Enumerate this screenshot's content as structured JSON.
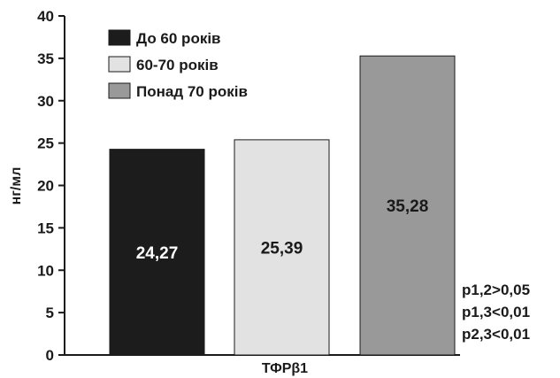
{
  "chart_data": {
    "type": "bar",
    "xlabel": "ТФРβ1",
    "ylabel": "нг/мл",
    "ylim": [
      0,
      40
    ],
    "yticks": [
      0,
      5,
      10,
      15,
      20,
      25,
      30,
      35,
      40
    ],
    "grid": false,
    "legend_position": "top-left",
    "series": [
      {
        "name": "До 60 років",
        "values": [
          24.27
        ],
        "value_label": "24,27",
        "color": "#1c1c1c",
        "label_color": "#ffffff"
      },
      {
        "name": "60-70 років",
        "values": [
          25.39
        ],
        "value_label": "25,39",
        "color": "#e2e2e2",
        "label_color": "#1a1a1a"
      },
      {
        "name": "Понад 70 років",
        "values": [
          35.28
        ],
        "value_label": "35,28",
        "color": "#999999",
        "label_color": "#1a1a1a"
      }
    ],
    "annotations": [
      "p1,2>0,05",
      "p1,3<0,01",
      "p2,3<0,01"
    ]
  }
}
